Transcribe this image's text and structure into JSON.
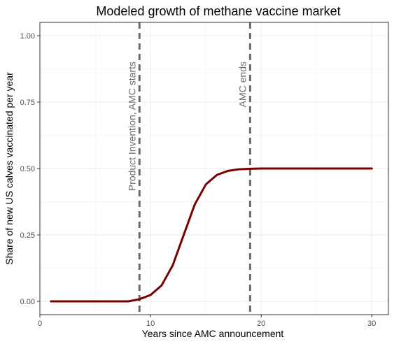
{
  "chart_data": {
    "type": "line",
    "title": "Modeled growth of methane vaccine market",
    "xlabel": "Years since AMC announcement",
    "ylabel": "Share of new US calves vaccinated per year",
    "xlim": [
      0,
      31.5
    ],
    "ylim": [
      -0.05,
      1.05
    ],
    "x_ticks": [
      0,
      10,
      20,
      30
    ],
    "x_tick_labels": [
      "0",
      "10",
      "20",
      "30"
    ],
    "y_ticks": [
      0,
      0.25,
      0.5,
      0.75,
      1.0
    ],
    "y_tick_labels": [
      "0.00",
      "0.25",
      "0.50",
      "0.75",
      "1.00"
    ],
    "grid": true,
    "series": [
      {
        "color": "#7a0000",
        "x": [
          1,
          2,
          3,
          4,
          5,
          6,
          7,
          8,
          9,
          10,
          11,
          12,
          13,
          14,
          15,
          16,
          17,
          18,
          19,
          20,
          21,
          22,
          23,
          24,
          25,
          26,
          27,
          28,
          29,
          30
        ],
        "y": [
          0,
          0,
          0,
          0,
          0,
          0,
          0,
          0,
          0.008,
          0.024,
          0.06,
          0.135,
          0.25,
          0.365,
          0.44,
          0.476,
          0.491,
          0.497,
          0.499,
          0.5,
          0.5,
          0.5,
          0.5,
          0.5,
          0.5,
          0.5,
          0.5,
          0.5,
          0.5,
          0.5
        ]
      }
    ],
    "vlines": [
      {
        "x": 9,
        "label": "Product Invention, AMC starts",
        "color": "#6b6b6b"
      },
      {
        "x": 19,
        "label": "AMC ends",
        "color": "#6b6b6b"
      }
    ]
  }
}
